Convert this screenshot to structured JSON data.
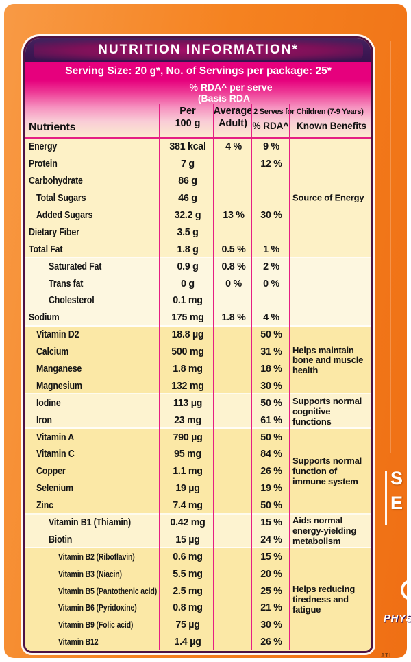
{
  "header": {
    "title": "NUTRITION INFORMATION*",
    "serving_line": "Serving Size: 20 g*, No. of Servings per package: 25*",
    "rda_line1": "% RDA^ per serve",
    "rda_line2": "(Basis RDA",
    "col_nutrients": "Nutrients",
    "col_per_1": "Per",
    "col_per_2": "100 g",
    "col_avg_1": "Average",
    "col_avg_2": "Adult)",
    "col_children": "2 Serves for Children (7-9 Years)",
    "col_rda": "% RDA^",
    "col_benefits": "Known Benefits"
  },
  "colors": {
    "accent_magenta": "#e6007d",
    "header_purple": "#3e1b57",
    "package_orange": "#f58220",
    "panel_cream": "#fdf3d0"
  },
  "table": {
    "groups": [
      {
        "benefit": "Source of Energy",
        "bg": "#fdf1c6",
        "rows": [
          {
            "name": "Energy",
            "indent": 0,
            "per": "381 kcal",
            "adult": "4 %",
            "rda": "9 %"
          },
          {
            "name": "Protein",
            "indent": 0,
            "per": "7 g",
            "adult": "",
            "rda": "12 %"
          },
          {
            "name": "Carbohydrate",
            "indent": 0,
            "per": "86 g",
            "adult": "",
            "rda": ""
          },
          {
            "name": "Total Sugars",
            "indent": 1,
            "per": "46 g",
            "adult": "",
            "rda": ""
          },
          {
            "name": "Added Sugars",
            "indent": 1,
            "per": "32.2 g",
            "adult": "13 %",
            "rda": "30 %"
          },
          {
            "name": "Dietary Fiber",
            "indent": 0,
            "per": "3.5 g",
            "adult": "",
            "rda": ""
          },
          {
            "name": "Total Fat",
            "indent": 0,
            "per": "1.8 g",
            "adult": "0.5 %",
            "rda": "1 %"
          }
        ]
      },
      {
        "benefit": null,
        "bg": "#fdf7e0",
        "rows": [
          {
            "name": "Saturated Fat",
            "indent": 2,
            "per": "0.9 g",
            "adult": "0.8 %",
            "rda": "2 %"
          },
          {
            "name": "Trans fat",
            "indent": 2,
            "per": "0 g",
            "adult": "0 %",
            "rda": "0 %"
          },
          {
            "name": "Cholesterol",
            "indent": 2,
            "per": "0.1 mg",
            "adult": "",
            "rda": ""
          },
          {
            "name": "Sodium",
            "indent": 0,
            "per": "175 mg",
            "adult": "1.8 %",
            "rda": "4 %"
          }
        ]
      },
      {
        "benefit": "Helps maintain bone and muscle health",
        "bg": "#fbe8a6",
        "rows": [
          {
            "name": "Vitamin D2",
            "indent": 1,
            "per": "18.8 µg",
            "adult": "",
            "rda": "50 %"
          },
          {
            "name": "Calcium",
            "indent": 1,
            "per": "500 mg",
            "adult": "",
            "rda": "31 %"
          },
          {
            "name": "Manganese",
            "indent": 1,
            "per": "1.8 mg",
            "adult": "",
            "rda": "18 %"
          },
          {
            "name": "Magnesium",
            "indent": 1,
            "per": "132 mg",
            "adult": "",
            "rda": "30 %"
          }
        ]
      },
      {
        "benefit": "Supports normal cognitive functions",
        "bg": "#fdf3d0",
        "rows": [
          {
            "name": "Iodine",
            "indent": 1,
            "per": "113 µg",
            "adult": "",
            "rda": "50 %"
          },
          {
            "name": "Iron",
            "indent": 1,
            "per": "23 mg",
            "adult": "",
            "rda": "61 %"
          }
        ]
      },
      {
        "benefit": "Supports normal function of immune system",
        "bg": "#fbe8a6",
        "rows": [
          {
            "name": "Vitamin A",
            "indent": 1,
            "per": "790 µg",
            "adult": "",
            "rda": "50 %"
          },
          {
            "name": "Vitamin C",
            "indent": 1,
            "per": "95 mg",
            "adult": "",
            "rda": "84 %"
          },
          {
            "name": "Copper",
            "indent": 1,
            "per": "1.1 mg",
            "adult": "",
            "rda": "26 %"
          },
          {
            "name": "Selenium",
            "indent": 1,
            "per": "19 µg",
            "adult": "",
            "rda": "19 %"
          },
          {
            "name": "Zinc",
            "indent": 1,
            "per": "7.4 mg",
            "adult": "",
            "rda": "50 %"
          }
        ]
      },
      {
        "benefit": "Aids normal energy-yielding metabolism",
        "bg": "#fdf3d0",
        "rows": [
          {
            "name": "Vitamin B1 (Thiamin)",
            "indent": 2,
            "per": "0.42 mg",
            "adult": "",
            "rda": "15 %"
          },
          {
            "name": "Biotin",
            "indent": 2,
            "per": "15 µg",
            "adult": "",
            "rda": "24 %"
          }
        ]
      },
      {
        "benefit": "Helps reducing tiredness and fatigue",
        "bg": "#fbe8a6",
        "rows": [
          {
            "name": "Vitamin B2 (Riboflavin)",
            "indent": 3,
            "per": "0.6 mg",
            "adult": "",
            "rda": "15 %"
          },
          {
            "name": "Vitamin B3 (Niacin)",
            "indent": 3,
            "per": "5.5 mg",
            "adult": "",
            "rda": "20 %"
          },
          {
            "name": "Vitamin B5 (Pantothenic acid)",
            "indent": 3,
            "per": "2.5 mg",
            "adult": "",
            "rda": "25 %"
          },
          {
            "name": "Vitamin B6 (Pyridoxine)",
            "indent": 3,
            "per": "0.8 mg",
            "adult": "",
            "rda": "21 %"
          },
          {
            "name": "Vitamin B9 (Folic acid)",
            "indent": 3,
            "per": "75 µg",
            "adult": "",
            "rda": "30 %"
          },
          {
            "name": "Vitamin B12",
            "indent": 3,
            "per": "1.4 µg",
            "adult": "",
            "rda": "26 %"
          }
        ]
      }
    ]
  },
  "package_art": {
    "letter_top": "S",
    "letter_bottom": "E",
    "logo_fragment": "PHYS",
    "bottom_text": "ATL"
  }
}
